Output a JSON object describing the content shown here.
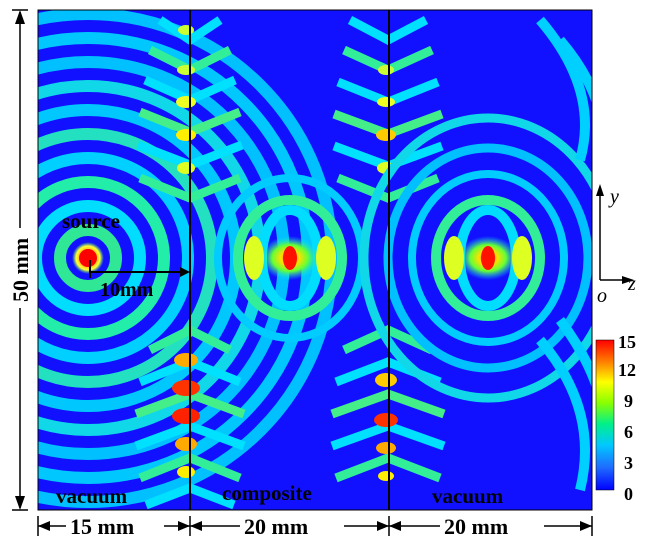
{
  "labels": {
    "source": "source",
    "scale": "10mm",
    "region_left": "vacuum",
    "region_middle": "composite",
    "region_right": "vacuum"
  },
  "dimensions": {
    "height": "50 mm",
    "width_left": "15 mm",
    "width_middle": "20 mm",
    "width_right": "20 mm"
  },
  "axes": {
    "y": "y",
    "z": "z",
    "origin": "o"
  },
  "colorbar": {
    "ticks": [
      "15",
      "12",
      "9",
      "6",
      "3",
      "0"
    ],
    "colors": [
      "#ff0000",
      "#ff8c00",
      "#ffff00",
      "#7cfc00",
      "#00e0a0",
      "#00bfff",
      "#1e6fff",
      "#0000ff"
    ]
  },
  "colors": {
    "background": "#0a0aff",
    "field_mid": "#00d5ff",
    "field_high": "#7fff00",
    "field_peak": "#ff0000"
  }
}
